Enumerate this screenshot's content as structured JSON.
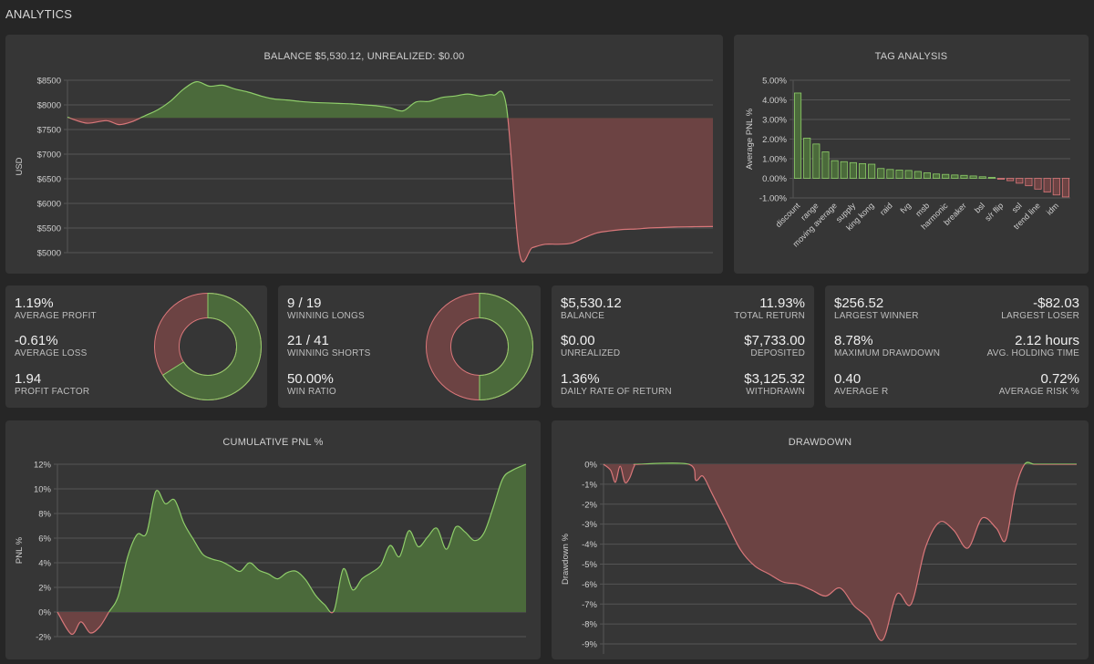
{
  "page": {
    "title": "ANALYTICS"
  },
  "colors": {
    "background": "#262626",
    "panel": "#363636",
    "green_line": "#8fce6a",
    "green_fill": "#4b6a3b",
    "red_line": "#d9777a",
    "red_fill": "#6c4343",
    "grid": "#555555",
    "text": "#e6e6e6"
  },
  "balance_chart": {
    "title": "BALANCE $5,530.12, UNREALIZED: $0.00",
    "chart_data": {
      "type": "area",
      "ylabel": "USD",
      "ylim": [
        5000,
        8500
      ],
      "yticks": [
        5000,
        5500,
        6000,
        6500,
        7000,
        7500,
        8000,
        8500
      ],
      "ytick_labels": [
        "$5000",
        "$5500",
        "$6000",
        "$6500",
        "$7000",
        "$7500",
        "$8000",
        "$8500"
      ],
      "baseline": 7733,
      "x": [
        0,
        3,
        6,
        8,
        10,
        12,
        14,
        16,
        18,
        20,
        22,
        24,
        26,
        28,
        30,
        32,
        34,
        36,
        38,
        40,
        42,
        44,
        46,
        48,
        50,
        52,
        54,
        56,
        58,
        60,
        62,
        64,
        66,
        68,
        70,
        72,
        74,
        76,
        78,
        80,
        82,
        84,
        86,
        88,
        90,
        92,
        94,
        96,
        98,
        100
      ],
      "values": [
        7750,
        7630,
        7680,
        7600,
        7660,
        7780,
        7900,
        8080,
        8320,
        8470,
        8380,
        8400,
        8320,
        8260,
        8180,
        8120,
        8100,
        8070,
        8050,
        8040,
        8030,
        8020,
        8000,
        7980,
        7940,
        7880,
        8060,
        8070,
        8150,
        8180,
        8220,
        8180,
        8200,
        7980,
        5010,
        5100,
        5170,
        5170,
        5190,
        5300,
        5400,
        5440,
        5470,
        5480,
        5500,
        5510,
        5520,
        5525,
        5528,
        5530
      ]
    }
  },
  "tag_chart": {
    "title": "TAG ANALYSIS",
    "chart_data": {
      "type": "bar",
      "ylabel": "Average PNL %",
      "ylim": [
        -1,
        5
      ],
      "yticks": [
        -1,
        0,
        1,
        2,
        3,
        4,
        5
      ],
      "ytick_labels": [
        "-1.00%",
        "0.00%",
        "1.00%",
        "2.00%",
        "3.00%",
        "4.00%",
        "5.00%"
      ],
      "categories": [
        "discount",
        "",
        "range",
        "",
        "moving average",
        "",
        "supply",
        "",
        "king kong",
        "",
        "raid",
        "",
        "fvg",
        "",
        "msb",
        "",
        "harmonic",
        "",
        "breaker",
        "",
        "bsl",
        "",
        "s/r flip",
        "",
        "ssl",
        "",
        "trend line",
        "",
        "idm",
        ""
      ],
      "visible_labels": [
        "discount",
        "range",
        "moving average",
        "supply",
        "king kong",
        "raid",
        "fvg",
        "msb",
        "harmonic",
        "breaker",
        "bsl",
        "s/r flip",
        "ssl",
        "trend line",
        "idm"
      ],
      "values": [
        4.35,
        2.05,
        1.75,
        1.35,
        0.9,
        0.85,
        0.8,
        0.75,
        0.72,
        0.5,
        0.45,
        0.42,
        0.4,
        0.35,
        0.28,
        0.22,
        0.2,
        0.17,
        0.15,
        0.12,
        0.08,
        0.05,
        -0.05,
        -0.12,
        -0.25,
        -0.38,
        -0.55,
        -0.7,
        -0.85,
        -0.95
      ]
    }
  },
  "stats_card1": {
    "average_profit": {
      "value": "1.19%",
      "label": "AVERAGE PROFIT"
    },
    "average_loss": {
      "value": "-0.61%",
      "label": "AVERAGE LOSS"
    },
    "profit_factor": {
      "value": "1.94",
      "label": "PROFIT FACTOR"
    },
    "donut": {
      "green_fraction": 0.66
    }
  },
  "stats_card2": {
    "winning_longs": {
      "value": "9 / 19",
      "label": "WINNING LONGS"
    },
    "winning_shorts": {
      "value": "21 / 41",
      "label": "WINNING SHORTS"
    },
    "win_ratio": {
      "value": "50.00%",
      "label": "WIN RATIO"
    },
    "donut": {
      "green_fraction": 0.5
    }
  },
  "stats_card3": {
    "balance": {
      "value": "$5,530.12",
      "label": "BALANCE"
    },
    "total_return": {
      "value": "11.93%",
      "label": "TOTAL RETURN"
    },
    "unrealized": {
      "value": "$0.00",
      "label": "UNREALIZED"
    },
    "deposited": {
      "value": "$7,733.00",
      "label": "DEPOSITED"
    },
    "daily_rate": {
      "value": "1.36%",
      "label": "DAILY RATE OF RETURN"
    },
    "withdrawn": {
      "value": "$3,125.32",
      "label": "WITHDRAWN"
    }
  },
  "stats_card4": {
    "largest_winner": {
      "value": "$256.52",
      "label": "LARGEST WINNER"
    },
    "largest_loser": {
      "value": "-$82.03",
      "label": "LARGEST LOSER"
    },
    "max_drawdown": {
      "value": "8.78%",
      "label": "MAXIMUM DRAWDOWN"
    },
    "avg_holding": {
      "value": "2.12 hours",
      "label": "AVG. HOLDING TIME"
    },
    "average_r": {
      "value": "0.40",
      "label": "AVERAGE R"
    },
    "average_risk": {
      "value": "0.72%",
      "label": "AVERAGE RISK %"
    }
  },
  "cumulative_chart": {
    "title": "CUMULATIVE PNL %",
    "chart_data": {
      "type": "area",
      "ylabel": "PNL %",
      "ylim": [
        -2,
        12
      ],
      "yticks": [
        -2,
        0,
        2,
        4,
        6,
        8,
        10,
        12
      ],
      "ytick_labels": [
        "-2%",
        "0%",
        "2%",
        "4%",
        "6%",
        "8%",
        "10%",
        "12%"
      ],
      "baseline": 0,
      "x": [
        0,
        3,
        5,
        7,
        9,
        11,
        13,
        15,
        17,
        19,
        21,
        23,
        25,
        27,
        29,
        31,
        33,
        35,
        37,
        39,
        41,
        43,
        45,
        47,
        49,
        51,
        53,
        55,
        57,
        59,
        61,
        63,
        65,
        67,
        69,
        71,
        73,
        75,
        77,
        79,
        81,
        83,
        85,
        87,
        89,
        91,
        93,
        95,
        97,
        100
      ],
      "values": [
        0,
        -1.8,
        -0.8,
        -1.7,
        -1.2,
        0,
        1.3,
        4.5,
        6.3,
        6.4,
        9.8,
        8.8,
        9.1,
        7.2,
        5.9,
        4.7,
        4.3,
        4.1,
        3.7,
        3.3,
        4.0,
        3.4,
        3.1,
        2.7,
        3.2,
        3.3,
        2.6,
        1.4,
        0.6,
        0.1,
        3.5,
        1.8,
        2.7,
        3.2,
        3.8,
        5.4,
        4.5,
        6.6,
        5.3,
        6.1,
        6.8,
        5.1,
        6.9,
        6.5,
        5.8,
        6.4,
        8.5,
        10.8,
        11.5,
        12.0
      ]
    }
  },
  "drawdown_chart": {
    "title": "DRAWDOWN",
    "chart_data": {
      "type": "area",
      "ylabel": "Drawdown %",
      "ylim": [
        -9.5,
        0
      ],
      "yticks": [
        -9,
        -8,
        -7,
        -6,
        -5,
        -4,
        -3,
        -2,
        -1,
        0
      ],
      "ytick_labels": [
        "-9%",
        "-8%",
        "-7%",
        "-6%",
        "-5%",
        "-4%",
        "-3%",
        "-2%",
        "-1%",
        "0%"
      ],
      "baseline": 0,
      "x": [
        0,
        1.5,
        2.5,
        3.5,
        4.5,
        5.5,
        6.5,
        7.5,
        18,
        19.5,
        21,
        23,
        26,
        29,
        32,
        35,
        38,
        41,
        44,
        47,
        50,
        53,
        56,
        59,
        62,
        65,
        68,
        71,
        74,
        77,
        80,
        83,
        85,
        87,
        89,
        91,
        93,
        95,
        97,
        100
      ],
      "values": [
        0,
        -0.3,
        -0.9,
        -0.1,
        -0.9,
        -0.7,
        -0.1,
        0,
        0,
        -0.8,
        -0.6,
        -1.5,
        -2.9,
        -4.3,
        -5.1,
        -5.5,
        -5.9,
        -6.0,
        -6.3,
        -6.6,
        -6.2,
        -7.1,
        -7.7,
        -8.8,
        -6.5,
        -7.0,
        -4.2,
        -2.9,
        -3.3,
        -4.2,
        -2.7,
        -3.2,
        -3.8,
        -1.3,
        0,
        0,
        0,
        0,
        0,
        0
      ]
    }
  }
}
